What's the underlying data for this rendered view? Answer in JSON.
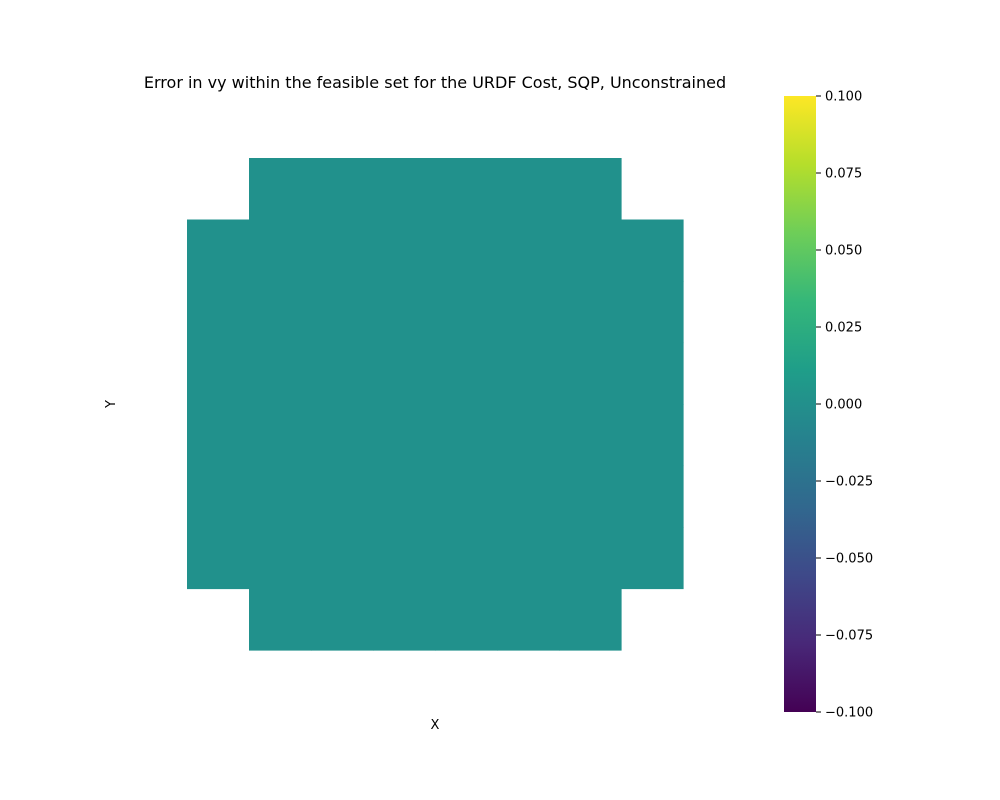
{
  "chart_data": {
    "type": "heatmap",
    "title": "Error in vy within the feasible set for the URDF Cost, SQP, Unconstrained",
    "xlabel": "X",
    "ylabel": "Y",
    "grid": false,
    "colormap": "viridis",
    "colorbar": {
      "vmin": -0.1,
      "vmax": 0.1,
      "ticks": [
        -0.1,
        -0.075,
        -0.05,
        -0.025,
        0.0,
        0.025,
        0.05,
        0.075,
        0.1
      ],
      "tick_labels": [
        "−0.100",
        "−0.075",
        "−0.050",
        "−0.025",
        "0.000",
        "0.025",
        "0.050",
        "0.075",
        "0.100"
      ]
    },
    "grid_shape": [
      8,
      8
    ],
    "z": [
      [
        null,
        0,
        0,
        0,
        0,
        0,
        0,
        null
      ],
      [
        0,
        0,
        0,
        0,
        0,
        0,
        0,
        0
      ],
      [
        0,
        0,
        0,
        0,
        0,
        0,
        0,
        0
      ],
      [
        0,
        0,
        0,
        0,
        0,
        0,
        0,
        0
      ],
      [
        0,
        0,
        0,
        0,
        0,
        0,
        0,
        0
      ],
      [
        0,
        0,
        0,
        0,
        0,
        0,
        0,
        0
      ],
      [
        0,
        0,
        0,
        0,
        0,
        0,
        0,
        0
      ],
      [
        null,
        0,
        0,
        0,
        0,
        0,
        0,
        null
      ]
    ],
    "colors": {
      "cell_zero": "#21918c",
      "viridis_stops": [
        "#440154",
        "#482878",
        "#3e4989",
        "#31688e",
        "#26828e",
        "#1f9e89",
        "#35b779",
        "#6ece58",
        "#b5de2b",
        "#fde725"
      ]
    }
  }
}
